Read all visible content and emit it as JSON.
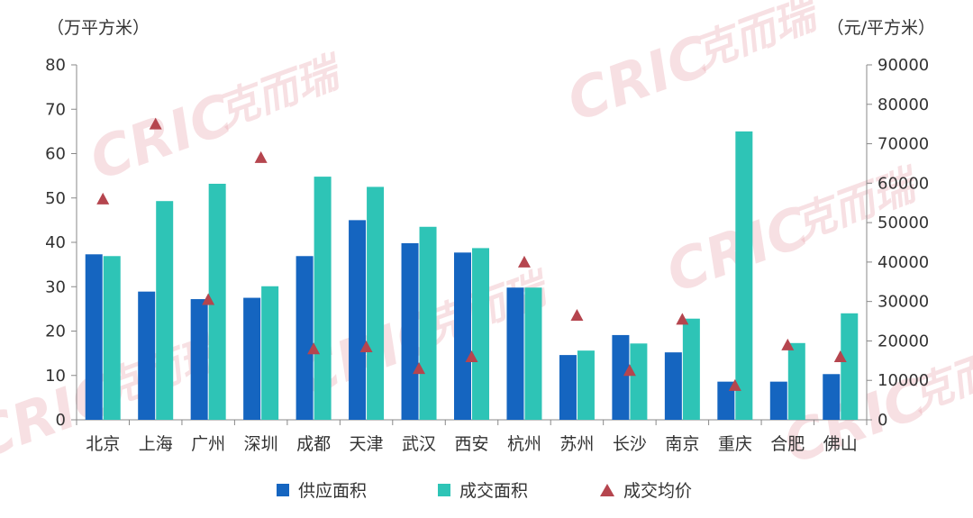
{
  "chart_data": {
    "type": "bar",
    "categories": [
      "北京",
      "上海",
      "广州",
      "深圳",
      "成都",
      "天津",
      "武汉",
      "西安",
      "杭州",
      "苏州",
      "长沙",
      "南京",
      "重庆",
      "合肥",
      "佛山"
    ],
    "y_left_unit": "（万平方米）",
    "y_right_unit": "（元/平方米）",
    "ylim_left": [
      0,
      80
    ],
    "ylim_right": [
      0,
      90000
    ],
    "yticks_left": [
      "0",
      "10",
      "20",
      "30",
      "40",
      "50",
      "60",
      "70",
      "80"
    ],
    "yticks_right": [
      "0",
      "10000",
      "20000",
      "30000",
      "40000",
      "50000",
      "60000",
      "70000",
      "80000",
      "90000"
    ],
    "series": [
      {
        "name": "供应面积",
        "type": "bar",
        "axis": "left",
        "color": "#1565c0",
        "values": [
          37.3,
          28.9,
          27.2,
          27.5,
          36.9,
          45.0,
          39.8,
          37.7,
          29.8,
          14.6,
          19.1,
          15.2,
          8.6,
          8.6,
          10.3
        ]
      },
      {
        "name": "成交面积",
        "type": "bar",
        "axis": "left",
        "color": "#2ec4b6",
        "values": [
          36.9,
          49.3,
          53.2,
          30.1,
          54.8,
          52.5,
          43.5,
          38.7,
          29.8,
          15.6,
          17.2,
          22.8,
          65.0,
          17.3,
          24.0
        ]
      },
      {
        "name": "成交均价",
        "type": "marker",
        "axis": "right",
        "color": "#b5454e",
        "values": [
          56000,
          75000,
          30500,
          66500,
          18000,
          18500,
          13000,
          16000,
          40000,
          26500,
          12500,
          25500,
          8700,
          19000,
          16000
        ]
      }
    ],
    "grid": false,
    "legend_position": "bottom"
  },
  "watermark": {
    "text": "CRIC",
    "text_cn": "克而瑞",
    "color": "#e9a6b0"
  }
}
